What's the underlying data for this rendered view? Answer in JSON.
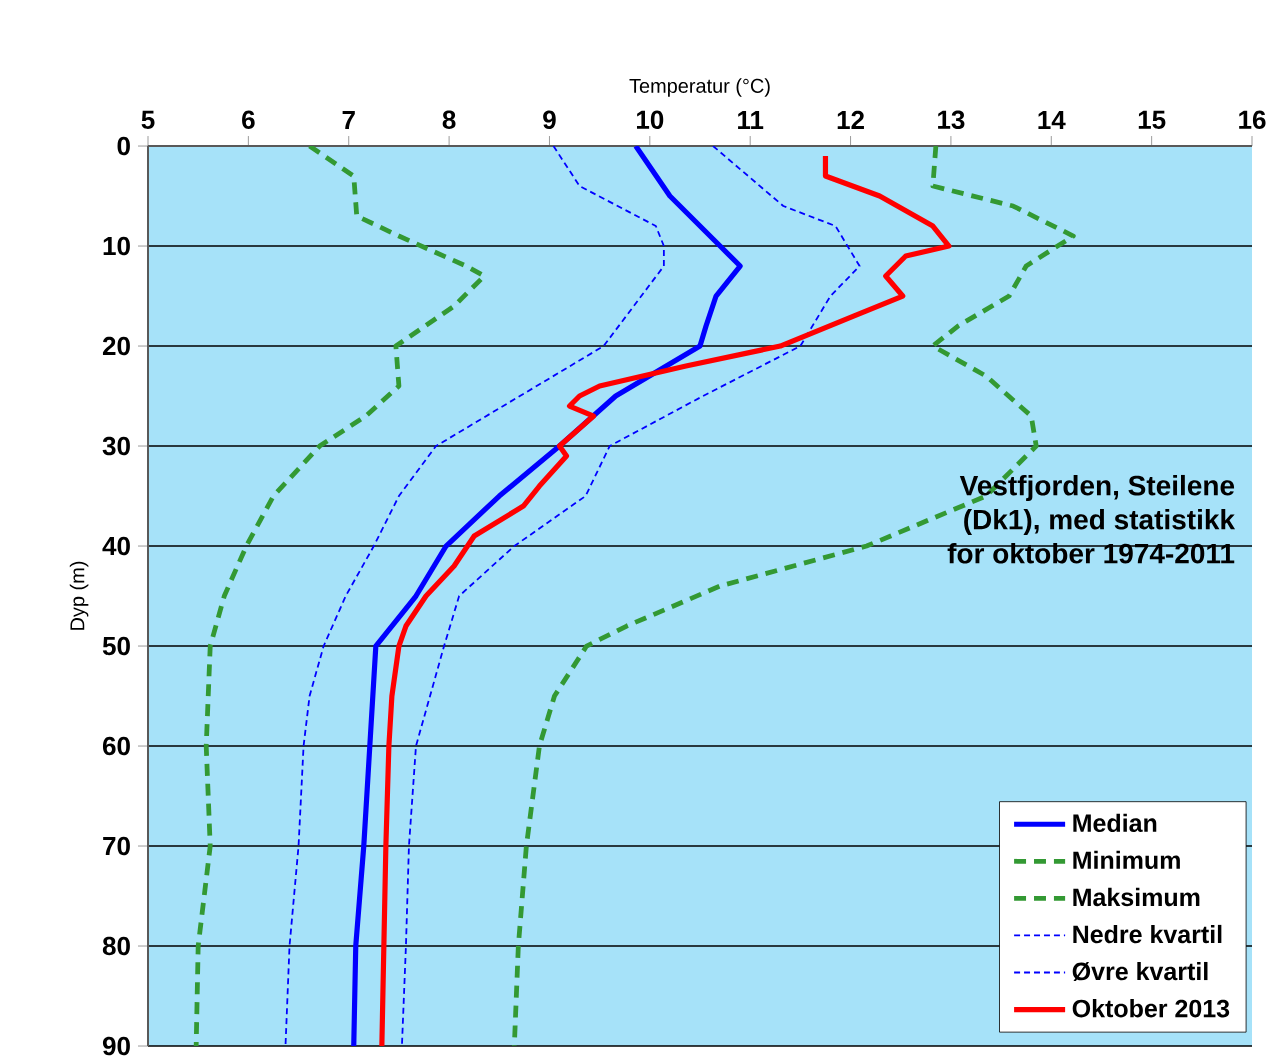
{
  "chart_data": {
    "type": "line",
    "xlabel": "Temperatur (°C)",
    "ylabel": "Dyp (m)",
    "xlim": [
      5,
      16
    ],
    "xticks": [
      5,
      6,
      7,
      8,
      9,
      10,
      11,
      12,
      13,
      14,
      15,
      16
    ],
    "ylim": [
      90,
      0
    ],
    "yticks": [
      0,
      10,
      20,
      30,
      40,
      50,
      60,
      70,
      80,
      90
    ],
    "grid": "y",
    "legend": "bottom right",
    "marker": "none",
    "annotations": [
      "Vestfjorden, Steilene (Dk1), med statistikk for oktober 1974-2011"
    ],
    "series": [
      {
        "name": "Median",
        "color": "#0000ff",
        "line_style": "solid",
        "x": [
          9.86,
          10.2,
          10.7,
          10.9,
          10.66,
          10.56,
          10.5,
          9.66,
          9.1,
          8.5,
          7.97,
          7.67,
          7.27,
          7.21,
          7.15,
          7.07,
          7.05
        ],
        "values": [
          0,
          5,
          10,
          12,
          15,
          18,
          20,
          25,
          30,
          35,
          40,
          45,
          50,
          60,
          70,
          80,
          90
        ]
      },
      {
        "name": "Minimum",
        "color": "#339933",
        "line_style": "dashed",
        "x": [
          6.61,
          7.05,
          7.08,
          7.5,
          8.17,
          8.35,
          8.05,
          7.47,
          7.5,
          7.17,
          6.71,
          6.25,
          5.98,
          5.76,
          5.62,
          5.58,
          5.62,
          5.5,
          5.48
        ],
        "values": [
          0,
          3,
          7,
          9,
          12,
          13,
          16,
          20,
          24,
          27,
          30,
          35,
          40,
          45,
          50,
          60,
          70,
          80,
          90
        ]
      },
      {
        "name": "Maksimum",
        "color": "#339933",
        "line_style": "dashed",
        "x": [
          12.85,
          12.82,
          13.62,
          14.22,
          13.75,
          13.58,
          13.07,
          12.82,
          13.35,
          13.8,
          13.85,
          13.35,
          12.16,
          10.7,
          9.77,
          9.37,
          9.05,
          8.9,
          8.77,
          8.69,
          8.65
        ],
        "values": [
          0,
          4,
          6,
          9,
          12,
          15,
          18,
          20,
          23,
          27,
          30,
          35,
          40,
          44,
          48,
          50,
          55,
          60,
          70,
          80,
          90
        ]
      },
      {
        "name": "Nedre kvartil",
        "color": "#0000ff",
        "line_style": "dotted",
        "x": [
          9.04,
          9.3,
          10.06,
          10.14,
          10.14,
          9.54,
          7.87,
          7.5,
          7.25,
          6.97,
          6.75,
          6.61,
          6.55,
          6.5,
          6.41,
          6.37
        ],
        "values": [
          0,
          4,
          8,
          10,
          12,
          20,
          30,
          35,
          40,
          45,
          50,
          55,
          60,
          70,
          80,
          90
        ]
      },
      {
        "name": "Øvre kvartil",
        "color": "#0000ff",
        "line_style": "dotted",
        "x": [
          10.63,
          11.33,
          11.85,
          12.09,
          11.8,
          11.5,
          10.53,
          9.6,
          9.36,
          8.65,
          8.1,
          7.95,
          7.67,
          7.6,
          7.57,
          7.53
        ],
        "values": [
          0,
          6,
          8,
          12,
          15,
          20,
          25,
          30,
          35,
          40,
          45,
          50,
          60,
          70,
          80,
          90
        ]
      },
      {
        "name": "Oktober 2013",
        "color": "#ff0000",
        "line_style": "solid",
        "x": [
          11.75,
          11.75,
          12.29,
          12.82,
          12.98,
          12.55,
          12.35,
          12.52,
          12.03,
          11.3,
          10.36,
          9.5,
          9.3,
          9.2,
          9.44,
          9.1,
          9.17,
          8.9,
          8.74,
          8.25,
          8.05,
          7.77,
          7.57,
          7.5,
          7.43,
          7.4,
          7.37,
          7.35,
          7.33
        ],
        "values": [
          1,
          3,
          5,
          8,
          10,
          11,
          13,
          15,
          17,
          20,
          22,
          24,
          25,
          26,
          27,
          30,
          31,
          34,
          36,
          39,
          42,
          45,
          48,
          50,
          55,
          60,
          70,
          80,
          90
        ]
      }
    ]
  }
}
